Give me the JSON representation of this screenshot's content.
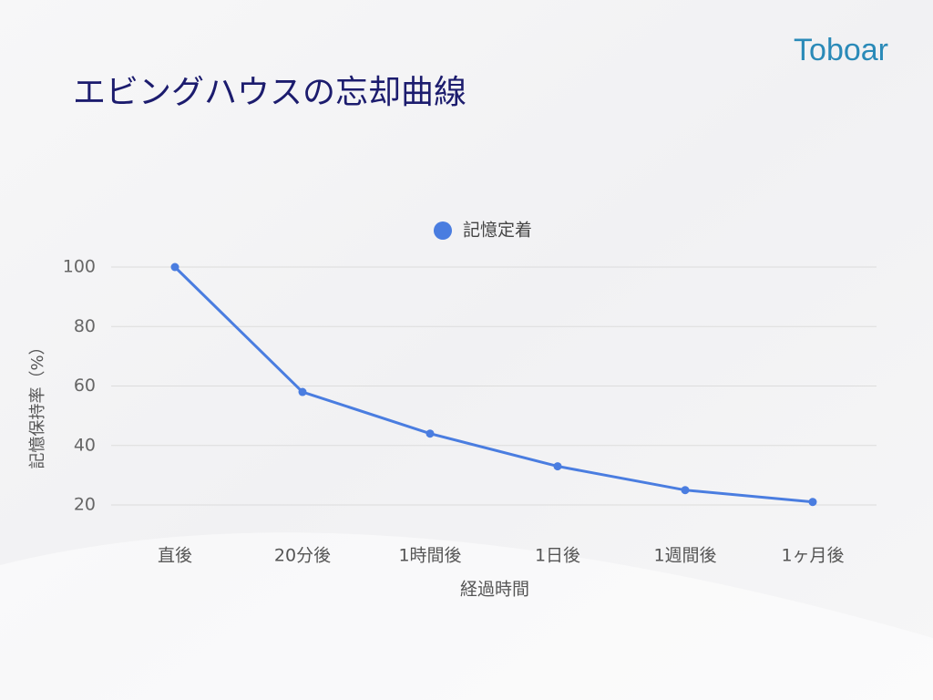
{
  "logo": "Toboar",
  "chart_data": {
    "type": "line",
    "title": "エビングハウスの忘却曲線",
    "categories": [
      "直後",
      "20分後",
      "1時間後",
      "1日後",
      "1週間後",
      "1ヶ月後"
    ],
    "series": [
      {
        "name": "記憶定着",
        "color": "#4a7de0",
        "values": [
          100,
          58,
          44,
          33,
          25,
          21
        ]
      }
    ],
    "y_label": "記憶保持率（%）",
    "x_label": "経過時間",
    "ylim": [
      20,
      100
    ],
    "yticks": [
      20,
      40,
      60,
      80,
      100
    ],
    "grid": true,
    "legend": "top"
  }
}
